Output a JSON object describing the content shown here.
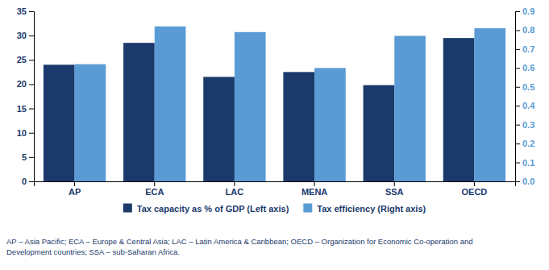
{
  "chart_data": {
    "type": "bar",
    "categories": [
      "AP",
      "ECA",
      "LAC",
      "MENA",
      "SSA",
      "OECD"
    ],
    "series": [
      {
        "name": "Tax capacity as % of GDP (Left axis)",
        "color": "#1B3A6B",
        "values": [
          24.0,
          28.5,
          21.5,
          22.5,
          19.8,
          29.5
        ]
      },
      {
        "name": "Tax efficiency (Right axis)",
        "color": "#5B9BD5",
        "axis": "y2",
        "values": [
          0.62,
          0.82,
          0.79,
          0.6,
          0.77,
          0.81
        ]
      }
    ],
    "ylim": [
      0,
      35
    ],
    "yticks": [
      0,
      5,
      10,
      15,
      20,
      25,
      30,
      35
    ],
    "y2lim": [
      0.0,
      0.9
    ],
    "y2ticks": [
      {
        "value": 0.0,
        "label": "0.0"
      },
      0.1,
      0.2,
      0.3,
      0.4,
      0.5,
      0.6,
      0.7,
      0.8,
      0.9
    ],
    "grid": false,
    "legend": "bottom",
    "footnote": "AP – Asia Pacific; ECA – Europe & Central Asia; LAC – Latin America & Caribbean; OECD – Organization for Economic Co-operation and\nDevelopment countries; SSA – sub-Saharan Africa."
  }
}
